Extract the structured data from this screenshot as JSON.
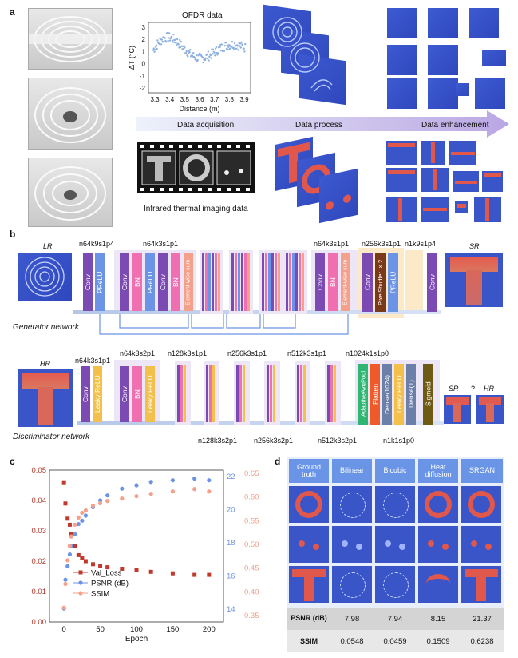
{
  "panel_a": {
    "letter": "a",
    "ofdr_title": "OFDR data",
    "ofdr_ylabel": "ΔT (°C)",
    "ofdr_xlabel": "Distance (m)",
    "ofdr_xticks": [
      "3.3",
      "3.4",
      "3.5",
      "3.6",
      "3.7",
      "3.8",
      "3.9"
    ],
    "ofdr_yticks": [
      "3",
      "2",
      "1",
      "0",
      "-1",
      "-2"
    ],
    "stage1": "Data acquisition",
    "stage2": "Data process",
    "stage3": "Data enhancement",
    "thermal_caption": "Infrared thermal imaging data"
  },
  "panel_b": {
    "letter": "b",
    "lr": "LR",
    "sr": "SR",
    "hr": "HR",
    "gen_label": "Generator network",
    "disc_label": "Discriminator network",
    "gen_params": [
      "n64k9s1p4",
      "n64k3s1p1",
      "n64k3s1p1",
      "n256k3s1p1",
      "n1k9s1p4"
    ],
    "gen_blocks": [
      "Conv",
      "PReLU",
      "Conv",
      "BN",
      "PReLU",
      "Conv",
      "BN",
      "Element-wise sum",
      "Conv",
      "BN",
      "Element-wise sum",
      "Conv",
      "PixelShuffler ×2",
      "PReLU",
      "Conv"
    ],
    "disc_params_top": [
      "n64k3s1p1",
      "n64k3s2p1",
      "n128k3s1p1",
      "n256k3s1p1",
      "n512k3s1p1",
      "n1024k1s1p0"
    ],
    "disc_params_bottom": [
      "n128k3s2p1",
      "n256k3s2p1",
      "n512k3s2p1",
      "n1k1s1p0"
    ],
    "disc_blocks": [
      "Conv",
      "Leaky ReLU",
      "Conv",
      "BN",
      "Leaky ReLU",
      "AdaptiveAvgPool",
      "Flatten",
      "Dense(1024)",
      "Leaky ReLU",
      "Dense(1)",
      "Sigmoid"
    ],
    "disc_out_sr": "SR",
    "disc_out_q": "?",
    "disc_out_hr": "HR"
  },
  "panel_c": {
    "letter": "c",
    "xlabel": "Epoch",
    "left_yticks": [
      "0.05",
      "0.04",
      "0.03",
      "0.02",
      "0.01",
      "0.00"
    ],
    "right1_yticks": [
      "22",
      "20",
      "18",
      "16",
      "14"
    ],
    "right2_yticks": [
      "0.65",
      "0.60",
      "0.55",
      "0.50",
      "0.45",
      "0.40",
      "0.35"
    ],
    "xticks": [
      "0",
      "50",
      "100",
      "150",
      "200"
    ],
    "legend": [
      "Val_Loss",
      "PSNR (dB)",
      "SSIM"
    ],
    "colors": {
      "loss": "#c0392b",
      "psnr": "#6b93e6",
      "ssim": "#f4a08a"
    }
  },
  "chart_data": {
    "type": "scatter",
    "xlabel": "Epoch",
    "xlim": [
      -20,
      220
    ],
    "series": [
      {
        "name": "Val_Loss",
        "axis": "left",
        "ylim": [
          0,
          0.05
        ],
        "x": [
          0,
          2,
          5,
          8,
          10,
          15,
          20,
          25,
          30,
          40,
          50,
          60,
          80,
          100,
          120,
          150,
          180,
          200
        ],
        "y": [
          0.046,
          0.039,
          0.034,
          0.032,
          0.029,
          0.025,
          0.022,
          0.021,
          0.02,
          0.019,
          0.0185,
          0.018,
          0.0175,
          0.017,
          0.0165,
          0.016,
          0.0155,
          0.0155
        ]
      },
      {
        "name": "PSNR (dB)",
        "axis": "right1",
        "ylim": [
          13,
          22
        ],
        "x": [
          0,
          2,
          5,
          8,
          10,
          15,
          20,
          25,
          30,
          40,
          50,
          60,
          80,
          100,
          120,
          150,
          180,
          200
        ],
        "y": [
          13.8,
          15.5,
          16.3,
          17.0,
          17.5,
          18.2,
          18.8,
          19.0,
          19.3,
          19.8,
          20.2,
          20.5,
          20.9,
          21.1,
          21.3,
          21.4,
          21.5,
          21.4
        ]
      },
      {
        "name": "SSIM",
        "axis": "right2",
        "ylim": [
          0.34,
          0.66
        ],
        "x": [
          0,
          2,
          5,
          8,
          10,
          15,
          20,
          25,
          30,
          40,
          50,
          60,
          80,
          100,
          120,
          150,
          180,
          200
        ],
        "y": [
          0.37,
          0.42,
          0.47,
          0.5,
          0.52,
          0.545,
          0.56,
          0.57,
          0.575,
          0.585,
          0.59,
          0.595,
          0.6,
          0.605,
          0.61,
          0.615,
          0.62,
          0.615
        ]
      }
    ]
  },
  "panel_d": {
    "letter": "d",
    "headers": [
      "Ground truth",
      "Bilinear",
      "Bicubic",
      "Heat diffusion",
      "SRGAN"
    ],
    "row_psnr_label": "PSNR (dB)",
    "row_ssim_label": "SSIM",
    "psnr": [
      "7.98",
      "7.94",
      "8.15",
      "21.37"
    ],
    "ssim": [
      "0.0548",
      "0.0459",
      "0.1509",
      "0.6238"
    ]
  }
}
